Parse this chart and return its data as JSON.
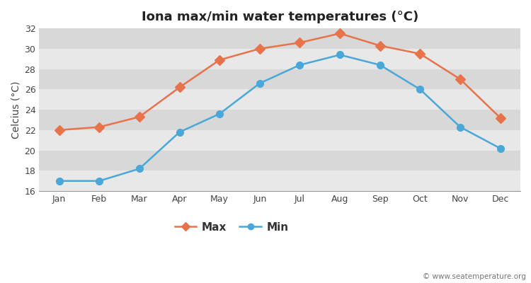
{
  "title": "Iona max/min water temperatures (°C)",
  "ylabel": "Celcius (°C)",
  "months": [
    "Jan",
    "Feb",
    "Mar",
    "Apr",
    "May",
    "Jun",
    "Jul",
    "Aug",
    "Sep",
    "Oct",
    "Nov",
    "Dec"
  ],
  "max_temps": [
    22.0,
    22.3,
    23.3,
    26.2,
    28.9,
    30.0,
    30.6,
    31.5,
    30.3,
    29.5,
    27.0,
    23.2
  ],
  "min_temps": [
    17.0,
    17.0,
    18.2,
    21.8,
    23.6,
    26.6,
    28.4,
    29.4,
    28.4,
    26.0,
    22.3,
    20.2
  ],
  "max_color": "#e8724a",
  "min_color": "#4aa8d8",
  "fig_bg_color": "#ffffff",
  "plot_bg_color": "#e8e8e8",
  "band_color_dark": "#d8d8d8",
  "band_color_light": "#e8e8e8",
  "grid_color": "#ffffff",
  "ylim": [
    16,
    32
  ],
  "yticks": [
    16,
    18,
    20,
    22,
    24,
    26,
    28,
    30,
    32
  ],
  "legend_labels": [
    "Max",
    "Min"
  ],
  "watermark": "© www.seatemperature.org",
  "title_fontsize": 13,
  "label_fontsize": 10,
  "tick_fontsize": 9,
  "marker_size": 7,
  "line_width": 1.8
}
